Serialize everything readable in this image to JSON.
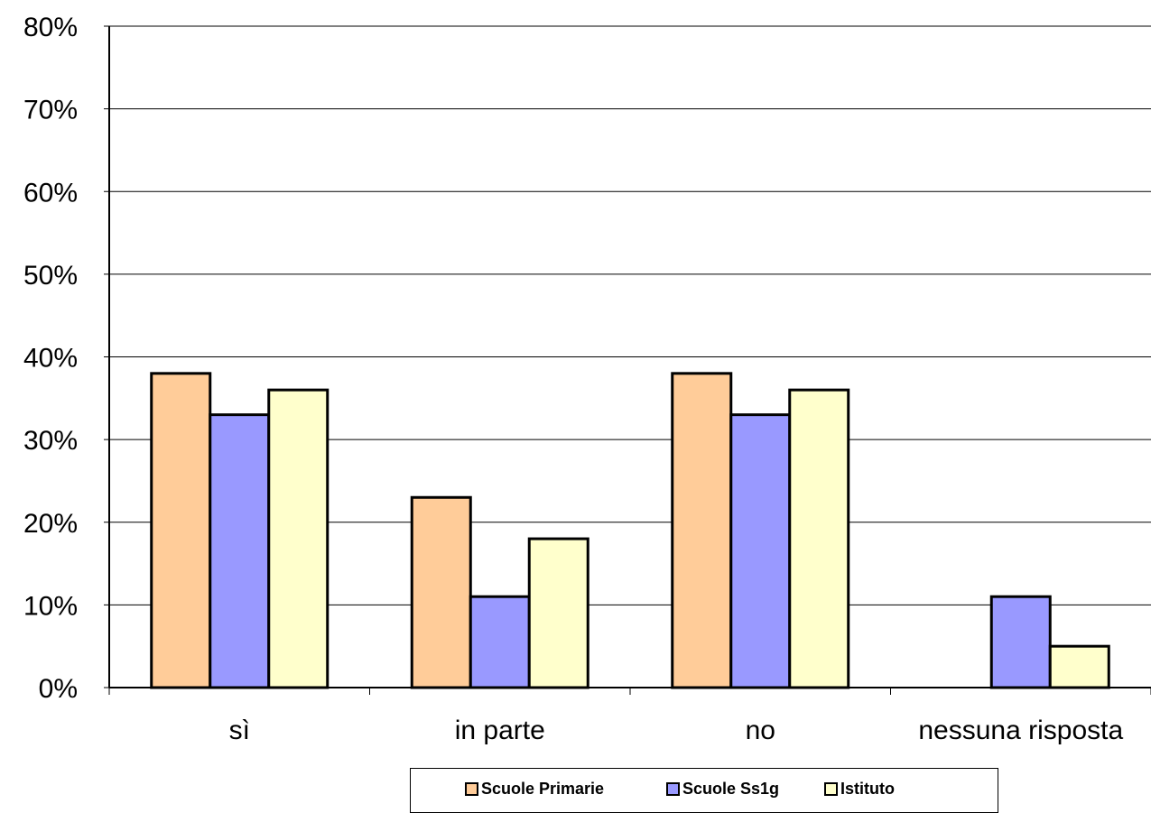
{
  "chart_data": {
    "type": "bar",
    "categories": [
      "sì",
      "in parte",
      "no",
      "nessuna risposta"
    ],
    "series": [
      {
        "name": "Scuole Primarie",
        "color": "#FFCC99",
        "values": [
          0.38,
          0.23,
          0.38,
          0.0
        ]
      },
      {
        "name": "Scuole Ss1g",
        "color": "#9999FF",
        "values": [
          0.33,
          0.11,
          0.33,
          0.11
        ]
      },
      {
        "name": "Istituto",
        "color": "#FFFFCC",
        "values": [
          0.36,
          0.18,
          0.36,
          0.05
        ]
      }
    ],
    "ylim": [
      0,
      0.8
    ],
    "yticks": [
      "0%",
      "10%",
      "20%",
      "30%",
      "40%",
      "50%",
      "60%",
      "70%",
      "80%"
    ],
    "grid": true,
    "legend_position": "bottom"
  }
}
